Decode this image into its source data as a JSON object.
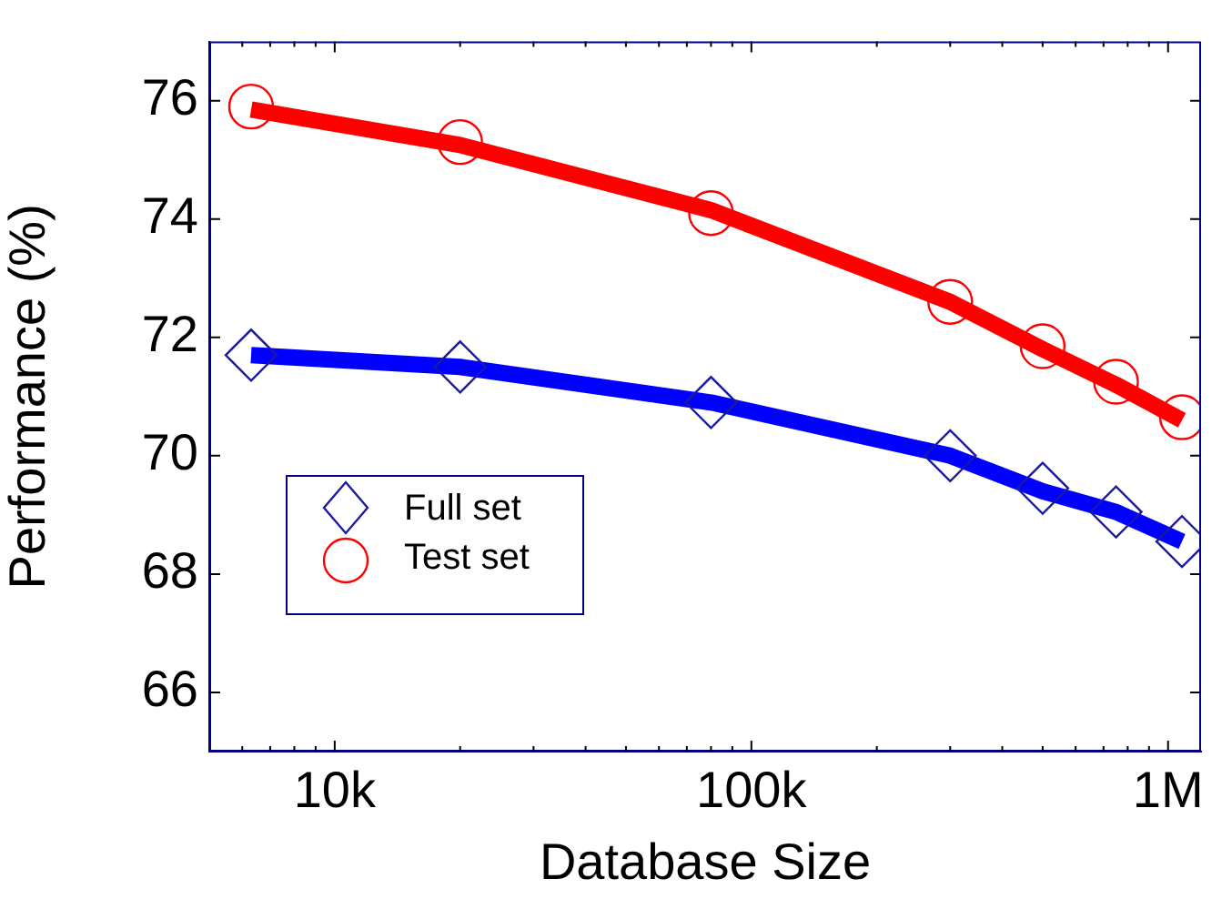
{
  "chart_data": {
    "type": "scatter",
    "xlabel": "Database Size",
    "ylabel": "Performance (%)",
    "log": "x",
    "xlim": [
      5000,
      1200000
    ],
    "ylim": [
      65,
      77
    ],
    "xticks": [
      {
        "value": 6000,
        "label": null
      },
      {
        "value": 7000,
        "label": null
      },
      {
        "value": 8000,
        "label": null
      },
      {
        "value": 9000,
        "label": null
      },
      {
        "value": 10000,
        "label": "10k"
      },
      {
        "value": 20000,
        "label": null
      },
      {
        "value": 30000,
        "label": null
      },
      {
        "value": 40000,
        "label": null
      },
      {
        "value": 50000,
        "label": null
      },
      {
        "value": 60000,
        "label": null
      },
      {
        "value": 70000,
        "label": null
      },
      {
        "value": 80000,
        "label": null
      },
      {
        "value": 90000,
        "label": null
      },
      {
        "value": 100000,
        "label": "100k"
      },
      {
        "value": 200000,
        "label": null
      },
      {
        "value": 300000,
        "label": null
      },
      {
        "value": 400000,
        "label": null
      },
      {
        "value": 500000,
        "label": null
      },
      {
        "value": 600000,
        "label": null
      },
      {
        "value": 700000,
        "label": null
      },
      {
        "value": 800000,
        "label": null
      },
      {
        "value": 900000,
        "label": null
      },
      {
        "value": 1000000,
        "label": "1M"
      }
    ],
    "yticks": [
      66,
      68,
      70,
      72,
      74,
      76
    ],
    "grid": false,
    "legend": "bottom left",
    "series": [
      {
        "type": "line",
        "color": "#0000ff",
        "marker": "none",
        "x": [
          6300,
          20000,
          80000,
          300000,
          500000,
          750000,
          1080000
        ],
        "values": [
          71.7,
          71.5,
          70.9,
          70.0,
          69.4,
          69.05,
          68.55
        ]
      },
      {
        "type": "line",
        "color": "#ff0000",
        "marker": "none",
        "x": [
          6300,
          20000,
          80000,
          300000,
          500000,
          750000,
          1080000
        ],
        "values": [
          75.85,
          75.25,
          74.15,
          72.6,
          71.8,
          71.2,
          70.6
        ]
      },
      {
        "name": "Full set",
        "color": "#1a1aa0",
        "marker": "diamond",
        "x": [
          6300,
          20000,
          80000,
          300000,
          500000,
          750000,
          1080000
        ],
        "values": [
          71.7,
          71.5,
          70.9,
          70.0,
          69.45,
          69.05,
          68.55
        ]
      },
      {
        "name": "Test set",
        "color": "#ff0000",
        "marker": "circle",
        "x": [
          6300,
          20000,
          80000,
          300000,
          500000,
          750000,
          1080000
        ],
        "values": [
          75.9,
          75.3,
          74.1,
          72.6,
          71.85,
          71.25,
          70.65
        ]
      }
    ]
  }
}
